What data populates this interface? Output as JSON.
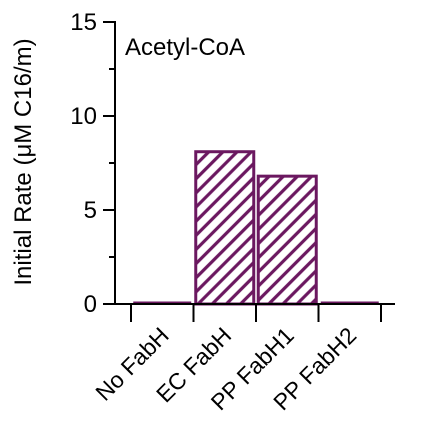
{
  "chart_data": {
    "type": "bar",
    "title": "",
    "annotation": "Acetyl-CoA",
    "xlabel": "",
    "ylabel": "Initial Rate (μM C16/m)",
    "categories": [
      "No FabH",
      "EC FabH",
      "PP FabH1",
      "PP FabH2"
    ],
    "values": [
      0,
      8.1,
      6.8,
      0
    ],
    "ylim": [
      0,
      15
    ],
    "yticks": [
      0,
      5,
      10,
      15
    ],
    "ytick_labels": [
      "0",
      "5",
      "10",
      "15"
    ],
    "grid": false,
    "legend": "none",
    "bar_style": "diagonal hatch",
    "bar_color": "#6b1860"
  }
}
